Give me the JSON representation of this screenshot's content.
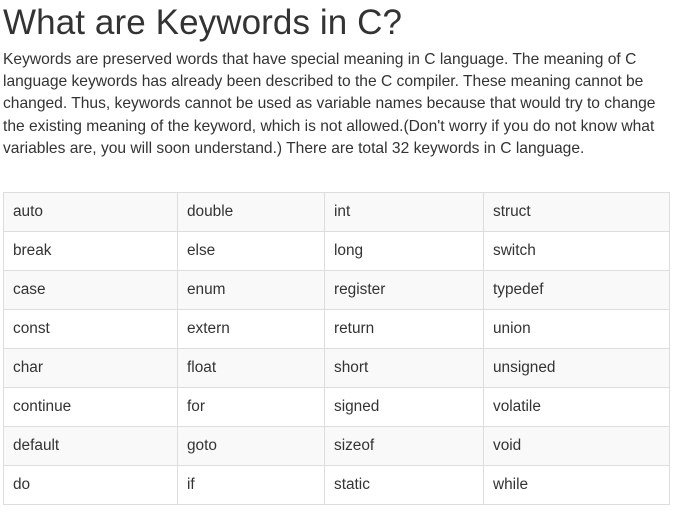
{
  "heading": "What are Keywords in C?",
  "intro": "Keywords are preserved words that have special meaning in C language. The meaning of C language keywords has already been described to the C compiler. These meaning cannot be changed. Thus, keywords cannot be used as variable names because that would try to change the existing meaning of the keyword, which is not allowed.(Don't worry if you do not know what variables are, you will soon understand.) There are total 32 keywords in C language.",
  "keywords_table": {
    "rows": [
      [
        "auto",
        "double",
        "int",
        "struct"
      ],
      [
        "break",
        "else",
        "long",
        "switch"
      ],
      [
        "case",
        "enum",
        "register",
        "typedef"
      ],
      [
        "const",
        "extern",
        "return",
        "union"
      ],
      [
        "char",
        "float",
        "short",
        "unsigned"
      ],
      [
        "continue",
        "for",
        "signed",
        "volatile"
      ],
      [
        "default",
        "goto",
        "sizeof",
        "void"
      ],
      [
        "do",
        "if",
        "static",
        "while"
      ]
    ]
  }
}
